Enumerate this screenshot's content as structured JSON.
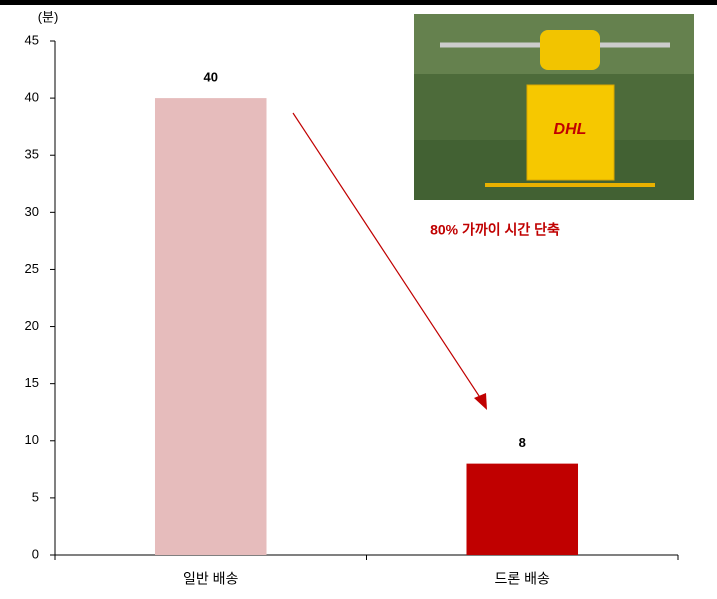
{
  "chart_data": {
    "type": "bar",
    "y_label": "(분)",
    "annotation": "80% 가까이 시간 단축",
    "categories": [
      "일반 배송",
      "드론 배송"
    ],
    "values": [
      40,
      8
    ],
    "colors": [
      "#e6bcbc",
      "#c00000"
    ],
    "ylim": [
      0,
      45
    ],
    "yticks": [
      0,
      5,
      10,
      15,
      20,
      25,
      30,
      35,
      40,
      45
    ],
    "grid": false
  }
}
